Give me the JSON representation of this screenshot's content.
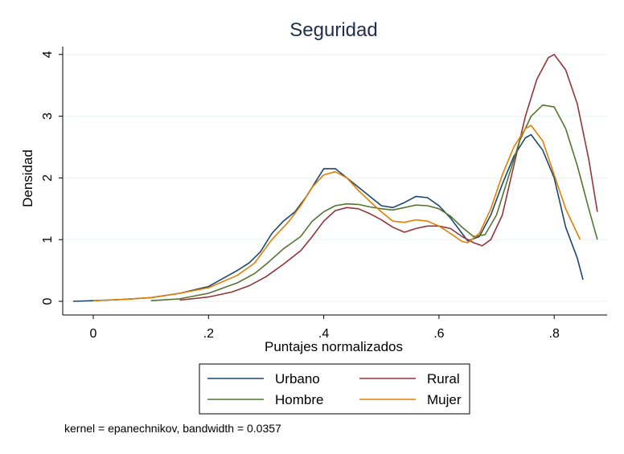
{
  "chart_data": {
    "type": "line",
    "title": "Seguridad",
    "xlabel": "Puntajes normalizados",
    "ylabel": "Densidad",
    "xlim": [
      -0.05,
      0.88
    ],
    "ylim": [
      0,
      4.2
    ],
    "xticks": [
      0,
      0.2,
      0.4,
      0.6,
      0.8
    ],
    "xtick_labels": [
      "0",
      ".2",
      ".4",
      ".6",
      ".8"
    ],
    "yticks": [
      0,
      1,
      2,
      3,
      4
    ],
    "ytick_labels": [
      "0",
      "1",
      "2",
      "3",
      "4"
    ],
    "grid": "horizontal",
    "legend": "bottom",
    "note": "kernel = epanechnikov, bandwidth = 0.0357",
    "series": [
      {
        "name": "Urbano",
        "color": "#1a476f",
        "points": [
          [
            -0.035,
            0.0
          ],
          [
            0.0,
            0.01
          ],
          [
            0.05,
            0.03
          ],
          [
            0.1,
            0.06
          ],
          [
            0.15,
            0.13
          ],
          [
            0.2,
            0.24
          ],
          [
            0.25,
            0.5
          ],
          [
            0.27,
            0.62
          ],
          [
            0.29,
            0.8
          ],
          [
            0.31,
            1.1
          ],
          [
            0.33,
            1.3
          ],
          [
            0.35,
            1.45
          ],
          [
            0.37,
            1.7
          ],
          [
            0.39,
            2.0
          ],
          [
            0.4,
            2.15
          ],
          [
            0.42,
            2.15
          ],
          [
            0.44,
            2.0
          ],
          [
            0.46,
            1.85
          ],
          [
            0.48,
            1.7
          ],
          [
            0.5,
            1.55
          ],
          [
            0.52,
            1.52
          ],
          [
            0.54,
            1.6
          ],
          [
            0.56,
            1.7
          ],
          [
            0.58,
            1.68
          ],
          [
            0.6,
            1.55
          ],
          [
            0.62,
            1.35
          ],
          [
            0.64,
            1.1
          ],
          [
            0.65,
            0.98
          ],
          [
            0.67,
            1.05
          ],
          [
            0.69,
            1.4
          ],
          [
            0.71,
            1.9
          ],
          [
            0.73,
            2.35
          ],
          [
            0.75,
            2.65
          ],
          [
            0.76,
            2.7
          ],
          [
            0.78,
            2.45
          ],
          [
            0.8,
            2.0
          ],
          [
            0.82,
            1.2
          ],
          [
            0.84,
            0.7
          ],
          [
            0.85,
            0.35
          ]
        ]
      },
      {
        "name": "Rural",
        "color": "#90353b",
        "points": [
          [
            0.15,
            0.02
          ],
          [
            0.2,
            0.07
          ],
          [
            0.24,
            0.15
          ],
          [
            0.27,
            0.25
          ],
          [
            0.3,
            0.4
          ],
          [
            0.33,
            0.6
          ],
          [
            0.36,
            0.82
          ],
          [
            0.38,
            1.05
          ],
          [
            0.4,
            1.3
          ],
          [
            0.42,
            1.47
          ],
          [
            0.44,
            1.52
          ],
          [
            0.46,
            1.5
          ],
          [
            0.48,
            1.42
          ],
          [
            0.5,
            1.32
          ],
          [
            0.52,
            1.2
          ],
          [
            0.54,
            1.12
          ],
          [
            0.56,
            1.18
          ],
          [
            0.58,
            1.22
          ],
          [
            0.6,
            1.22
          ],
          [
            0.62,
            1.18
          ],
          [
            0.64,
            1.05
          ],
          [
            0.66,
            0.95
          ],
          [
            0.675,
            0.9
          ],
          [
            0.69,
            1.0
          ],
          [
            0.71,
            1.4
          ],
          [
            0.73,
            2.2
          ],
          [
            0.75,
            3.0
          ],
          [
            0.77,
            3.6
          ],
          [
            0.79,
            3.95
          ],
          [
            0.8,
            4.0
          ],
          [
            0.82,
            3.75
          ],
          [
            0.84,
            3.2
          ],
          [
            0.86,
            2.3
          ],
          [
            0.875,
            1.45
          ]
        ]
      },
      {
        "name": "Hombre",
        "color": "#55752f",
        "points": [
          [
            0.1,
            0.01
          ],
          [
            0.15,
            0.04
          ],
          [
            0.2,
            0.13
          ],
          [
            0.25,
            0.3
          ],
          [
            0.28,
            0.45
          ],
          [
            0.3,
            0.6
          ],
          [
            0.33,
            0.85
          ],
          [
            0.36,
            1.05
          ],
          [
            0.38,
            1.3
          ],
          [
            0.4,
            1.45
          ],
          [
            0.42,
            1.55
          ],
          [
            0.44,
            1.58
          ],
          [
            0.46,
            1.57
          ],
          [
            0.48,
            1.53
          ],
          [
            0.5,
            1.5
          ],
          [
            0.52,
            1.48
          ],
          [
            0.54,
            1.52
          ],
          [
            0.56,
            1.56
          ],
          [
            0.58,
            1.55
          ],
          [
            0.6,
            1.5
          ],
          [
            0.62,
            1.38
          ],
          [
            0.64,
            1.2
          ],
          [
            0.66,
            1.05
          ],
          [
            0.68,
            1.08
          ],
          [
            0.7,
            1.4
          ],
          [
            0.72,
            2.0
          ],
          [
            0.74,
            2.6
          ],
          [
            0.76,
            3.0
          ],
          [
            0.78,
            3.18
          ],
          [
            0.8,
            3.15
          ],
          [
            0.82,
            2.8
          ],
          [
            0.84,
            2.2
          ],
          [
            0.86,
            1.5
          ],
          [
            0.875,
            1.0
          ]
        ]
      },
      {
        "name": "Mujer",
        "color": "#e37e00",
        "points": [
          [
            0.0,
            0.01
          ],
          [
            0.05,
            0.03
          ],
          [
            0.1,
            0.06
          ],
          [
            0.15,
            0.13
          ],
          [
            0.2,
            0.22
          ],
          [
            0.25,
            0.42
          ],
          [
            0.28,
            0.62
          ],
          [
            0.31,
            1.0
          ],
          [
            0.34,
            1.3
          ],
          [
            0.36,
            1.55
          ],
          [
            0.38,
            1.85
          ],
          [
            0.4,
            2.05
          ],
          [
            0.42,
            2.1
          ],
          [
            0.44,
            2.0
          ],
          [
            0.46,
            1.8
          ],
          [
            0.48,
            1.62
          ],
          [
            0.5,
            1.45
          ],
          [
            0.52,
            1.3
          ],
          [
            0.54,
            1.28
          ],
          [
            0.56,
            1.32
          ],
          [
            0.58,
            1.3
          ],
          [
            0.6,
            1.22
          ],
          [
            0.62,
            1.1
          ],
          [
            0.64,
            0.97
          ],
          [
            0.65,
            0.95
          ],
          [
            0.67,
            1.1
          ],
          [
            0.69,
            1.5
          ],
          [
            0.71,
            2.05
          ],
          [
            0.73,
            2.5
          ],
          [
            0.75,
            2.8
          ],
          [
            0.76,
            2.85
          ],
          [
            0.78,
            2.6
          ],
          [
            0.8,
            2.05
          ],
          [
            0.82,
            1.5
          ],
          [
            0.845,
            1.0
          ]
        ]
      }
    ]
  }
}
